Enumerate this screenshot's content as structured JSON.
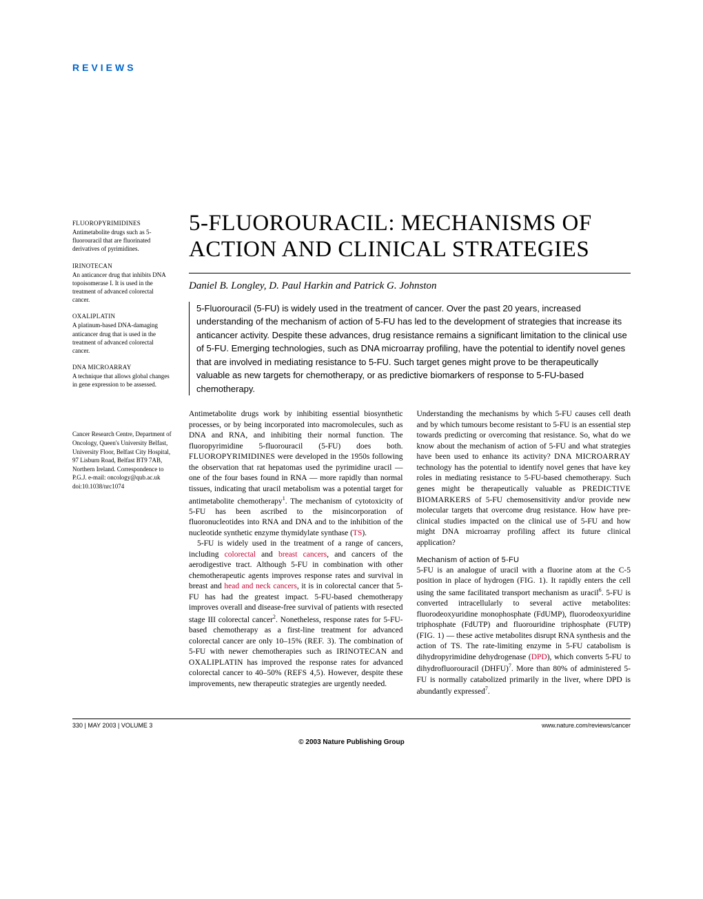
{
  "header": {
    "section_label": "REVIEWS"
  },
  "article": {
    "title": "5-FLUOROURACIL: MECHANISMS OF ACTION AND CLINICAL STRATEGIES",
    "authors": "Daniel B. Longley, D. Paul Harkin and Patrick G. Johnston",
    "abstract": "5-Fluorouracil (5-FU) is widely used in the treatment of cancer. Over the past 20 years, increased understanding of the mechanism of action of 5-FU has led to the development of strategies that increase its anticancer activity. Despite these advances, drug resistance remains a significant limitation to the clinical use of 5-FU. Emerging technologies, such as DNA microarray profiling, have the potential to identify novel genes that are involved in mediating resistance to 5-FU. Such target genes might prove to be therapeutically valuable as new targets for chemotherapy, or as predictive biomarkers of response to 5-FU-based chemotherapy."
  },
  "glossary": [
    {
      "term": "FLUOROPYRIMIDINES",
      "def": "Antimetabolite drugs such as 5-fluorouracil that are fluorinated derivatives of pyrimidines."
    },
    {
      "term": "IRINOTECAN",
      "def": "An anticancer drug that inhibits DNA topoisomerase I. It is used in the treatment of advanced colorectal cancer."
    },
    {
      "term": "OXALIPLATIN",
      "def": "A platinum-based DNA-damaging anticancer drug that is used in the treatment of advanced colorectal cancer."
    },
    {
      "term": "DNA MICROARRAY",
      "def": "A technique that allows global changes in gene expression to be assessed."
    }
  ],
  "affiliation": {
    "lines": "Cancer Research Centre, Department of Oncology, Queen's University Belfast, University Floor, Belfast City Hospital, 97 Lisburn Road, Belfast BT9 7AB, Northern Ireland. Correspondence to P.G.J. e-mail: oncology@qub.ac.uk",
    "doi": "doi:10.1038/nrc1074"
  },
  "body": {
    "col1": {
      "p1a": "Antimetabolite drugs work by inhibiting essential biosynthetic processes, or by being incorporated into macromolecules, such as DNA and RNA, and inhibiting their normal function. The fluoropyrimidine 5-fluorouracil (5-FU) does both. ",
      "p1_sc1": "FLUOROPYRIMIDINES",
      "p1b": " were developed in the 1950s following the observation that rat hepatomas used the pyrimidine uracil — one of the four bases found in RNA — more rapidly than normal tissues, indicating that uracil metabolism was a potential target for antimetabolite chemotherapy",
      "p1_sup1": "1",
      "p1c": ". The mechanism of cytotoxicity of 5-FU has been ascribed to the misincorporation of fluoronucleotides into RNA and DNA and to the inhibition of the nucleotide synthetic enzyme thymidylate synthase (",
      "p1_red1": "TS",
      "p1d": ").",
      "p2a": "5-FU is widely used in the treatment of a range of cancers, including ",
      "p2_red1": "colorectal",
      "p2b": " and ",
      "p2_red2": "breast cancers",
      "p2c": ", and cancers of the aerodigestive tract. Although 5-FU in combination with other chemotherapeutic agents improves response rates and survival in breast and ",
      "p2_red3": "head and neck cancers",
      "p2d": ", it is in colorectal cancer that 5-FU has had the greatest impact. 5-FU-based chemotherapy improves overall and disease-free survival of patients with resected stage III colorectal cancer",
      "p2_sup1": "2",
      "p2e": ". Nonetheless, response rates for 5-FU-based chemotherapy as a first-line treatment for advanced colorectal cancer are only 10–15% ",
      "p2_ref1": "(REF. 3)",
      "p2f": ". The combination of 5-FU with newer chemotherapies such as ",
      "p2_sc1": "IRINOTECAN",
      "p2g": " and ",
      "p2_sc2": "OXALIPLATIN",
      "p2h": " has improved the response rates for advanced colorectal cancer to 40–50% ",
      "p2_ref2": "(REFS 4,5)",
      "p2i": ". However, despite these improvements, new therapeutic strategies are urgently needed."
    },
    "col2": {
      "p1a": "Understanding the mechanisms by which 5-FU causes cell death and by which tumours become resistant to 5-FU is an essential step towards predicting or overcoming that resistance. So, what do we know about the mechanism of action of 5-FU and what strategies have been used to enhance its activity? ",
      "p1_sc1": "DNA MICROARRAY",
      "p1b": " technology has the potential to identify novel genes that have key roles in mediating resistance to 5-FU-based chemotherapy. Such genes might be therapeutically valuable as ",
      "p1_sc2": "PREDICTIVE BIOMARKERS",
      "p1c": " of 5-FU chemosensitivity and/or provide new molecular targets that overcome drug resistance. How have pre-clinical studies impacted on the clinical use of 5-FU and how might DNA microarray profiling affect its future clinical application?",
      "subhead": "Mechanism of action of 5-FU",
      "p2a": "5-FU is an analogue of uracil with a fluorine atom at the C-5 position in place of hydrogen ",
      "p2_fig1": "(FIG. 1)",
      "p2b": ". It rapidly enters the cell using the same facilitated transport mechanism as uracil",
      "p2_sup1": "6",
      "p2c": ". 5-FU is converted intracellularly to several active metabolites: fluorodeoxyuridine monophosphate (FdUMP), fluorodeoxyuridine triphosphate (FdUTP) and fluorouridine triphosphate (FUTP) ",
      "p2_fig2": "(FIG. 1)",
      "p2d": " — these active metabolites disrupt RNA synthesis and the action of TS. The rate-limiting enzyme in 5-FU catabolism is dihydropyrimidine dehydrogenase (",
      "p2_red1": "DPD",
      "p2e": "), which converts 5-FU to dihydrofluorouracil (DHFU)",
      "p2_sup2": "7",
      "p2f": ". More than 80% of administered 5-FU is normally catabolized primarily in the liver, where DPD is abundantly expressed",
      "p2_sup3": "7",
      "p2g": "."
    }
  },
  "footer": {
    "left": "330 | MAY 2003 | VOLUME 3",
    "right": "www.nature.com/reviews/cancer",
    "copyright": "© 2003 Nature Publishing Group"
  },
  "colors": {
    "accent_blue": "#0066cc",
    "link_red": "#cc0033",
    "text": "#000000",
    "background": "#ffffff"
  }
}
